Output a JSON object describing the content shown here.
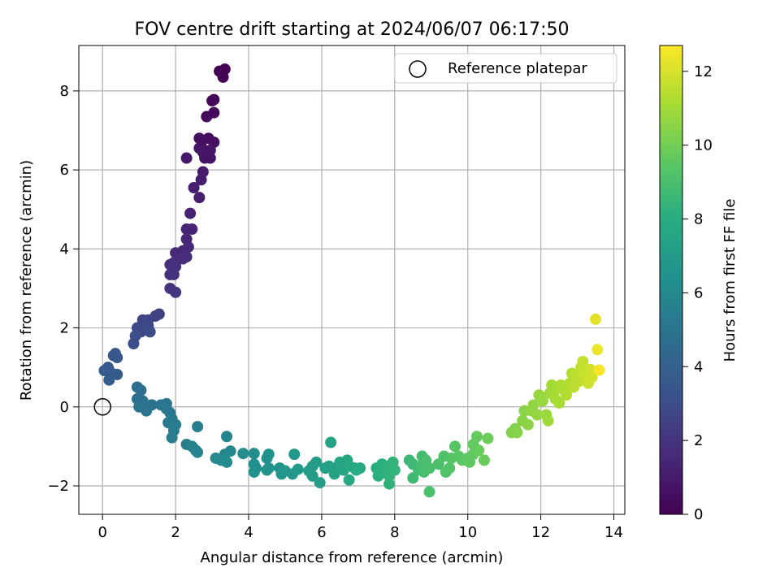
{
  "chart_data": {
    "type": "scatter",
    "title": "FOV centre drift starting at 2024/06/07 06:17:50",
    "xlabel": "Angular distance from reference (arcmin)",
    "ylabel": "Rotation from reference (arcmin)",
    "xlim": [
      -0.65,
      14.3
    ],
    "ylim": [
      -2.72,
      9.15
    ],
    "xticks": [
      0,
      2,
      4,
      6,
      8,
      10,
      12,
      14
    ],
    "yticks": [
      -2,
      0,
      2,
      4,
      6,
      8
    ],
    "grid": true,
    "legend": {
      "placement": "top-right",
      "entries": [
        "Reference platepar"
      ]
    },
    "colorbar": {
      "label": "Hours from first FF file",
      "colormap": "viridis",
      "range": [
        0,
        12.7
      ],
      "ticks": [
        0,
        2,
        4,
        6,
        8,
        10,
        12
      ]
    },
    "reference_point": {
      "x": 0,
      "y": 0
    },
    "points": [
      [
        3.2,
        8.5,
        0.0
      ],
      [
        3.35,
        8.55,
        0.05
      ],
      [
        3.3,
        8.35,
        0.1
      ],
      [
        3.05,
        7.78,
        0.2
      ],
      [
        3.0,
        7.75,
        0.25
      ],
      [
        3.05,
        7.45,
        0.3
      ],
      [
        2.85,
        7.35,
        0.35
      ],
      [
        2.9,
        6.8,
        0.45
      ],
      [
        3.05,
        6.7,
        0.5
      ],
      [
        2.65,
        6.8,
        0.55
      ],
      [
        2.7,
        6.6,
        0.6
      ],
      [
        2.75,
        6.45,
        0.65
      ],
      [
        2.8,
        6.3,
        0.7
      ],
      [
        2.95,
        6.3,
        0.75
      ],
      [
        2.95,
        6.5,
        0.8
      ],
      [
        2.65,
        6.55,
        0.85
      ],
      [
        2.3,
        6.3,
        0.9
      ],
      [
        2.75,
        5.95,
        1.0
      ],
      [
        2.7,
        5.75,
        1.05
      ],
      [
        2.5,
        5.55,
        1.1
      ],
      [
        2.65,
        5.3,
        1.15
      ],
      [
        2.4,
        4.9,
        1.3
      ],
      [
        2.45,
        4.5,
        1.35
      ],
      [
        2.3,
        4.5,
        1.4
      ],
      [
        2.3,
        4.25,
        1.45
      ],
      [
        2.35,
        4.05,
        1.5
      ],
      [
        2.2,
        3.95,
        1.55
      ],
      [
        2.0,
        3.9,
        1.6
      ],
      [
        2.2,
        3.75,
        1.65
      ],
      [
        2.3,
        3.8,
        1.7
      ],
      [
        1.95,
        3.65,
        1.75
      ],
      [
        1.85,
        3.6,
        1.8
      ],
      [
        2.0,
        3.55,
        1.85
      ],
      [
        1.85,
        3.35,
        1.9
      ],
      [
        1.95,
        3.35,
        1.95
      ],
      [
        1.85,
        3.0,
        2.0
      ],
      [
        2.0,
        2.9,
        2.1
      ],
      [
        1.55,
        2.35,
        2.5
      ],
      [
        1.45,
        2.3,
        2.55
      ],
      [
        1.25,
        2.2,
        2.6
      ],
      [
        1.1,
        2.2,
        2.7
      ],
      [
        1.25,
        2.05,
        2.75
      ],
      [
        1.15,
        2.0,
        2.8
      ],
      [
        0.95,
        2.0,
        2.85
      ],
      [
        1.05,
        1.9,
        2.9
      ],
      [
        1.3,
        1.9,
        2.95
      ],
      [
        0.9,
        1.8,
        3.0
      ],
      [
        0.85,
        1.6,
        3.05
      ],
      [
        0.35,
        1.35,
        3.4
      ],
      [
        0.3,
        1.3,
        3.45
      ],
      [
        0.4,
        1.25,
        3.5
      ],
      [
        0.15,
        1.0,
        3.55
      ],
      [
        0.2,
        0.9,
        3.6
      ],
      [
        0.05,
        0.92,
        3.7
      ],
      [
        0.4,
        0.82,
        3.75
      ],
      [
        0.18,
        0.68,
        3.8
      ],
      [
        0.95,
        0.5,
        4.6
      ],
      [
        1.05,
        0.42,
        4.65
      ],
      [
        0.95,
        0.2,
        4.7
      ],
      [
        1.1,
        0.15,
        4.75
      ],
      [
        1.35,
        0.05,
        4.8
      ],
      [
        1.25,
        0.02,
        4.85
      ],
      [
        1.6,
        0.05,
        4.9
      ],
      [
        1.0,
        0.0,
        4.95
      ],
      [
        1.2,
        -0.1,
        5.0
      ],
      [
        1.75,
        0.08,
        5.05
      ],
      [
        1.75,
        -0.05,
        5.1
      ],
      [
        1.85,
        -0.15,
        5.15
      ],
      [
        1.9,
        -0.3,
        5.2
      ],
      [
        1.8,
        -0.4,
        5.25
      ],
      [
        2.0,
        -0.45,
        5.3
      ],
      [
        1.95,
        -0.6,
        5.35
      ],
      [
        1.9,
        -0.78,
        5.4
      ],
      [
        2.6,
        -0.5,
        5.45
      ],
      [
        2.3,
        -0.95,
        5.5
      ],
      [
        2.45,
        -1.0,
        5.6
      ],
      [
        2.55,
        -1.1,
        5.65
      ],
      [
        2.6,
        -1.15,
        5.7
      ],
      [
        3.4,
        -0.75,
        5.8
      ],
      [
        3.5,
        -1.12,
        5.85
      ],
      [
        3.35,
        -1.2,
        5.9
      ],
      [
        3.3,
        -1.3,
        5.95
      ],
      [
        3.1,
        -1.3,
        6.0
      ],
      [
        3.25,
        -1.35,
        6.05
      ],
      [
        3.4,
        -1.4,
        6.1
      ],
      [
        3.85,
        -1.18,
        6.2
      ],
      [
        4.15,
        -1.18,
        6.25
      ],
      [
        4.15,
        -1.45,
        6.3
      ],
      [
        4.2,
        -1.55,
        6.35
      ],
      [
        4.15,
        -1.65,
        6.4
      ],
      [
        4.55,
        -1.2,
        6.45
      ],
      [
        4.5,
        -1.3,
        6.5
      ],
      [
        4.55,
        -1.55,
        6.55
      ],
      [
        4.5,
        -1.6,
        6.6
      ],
      [
        4.85,
        -1.55,
        6.65
      ],
      [
        4.9,
        -1.7,
        6.7
      ],
      [
        5.0,
        -1.62,
        6.75
      ],
      [
        5.2,
        -1.7,
        6.8
      ],
      [
        5.25,
        -1.2,
        6.85
      ],
      [
        5.35,
        -1.58,
        6.9
      ],
      [
        5.75,
        -1.5,
        6.95
      ],
      [
        5.65,
        -1.62,
        7.0
      ],
      [
        5.75,
        -1.75,
        7.05
      ],
      [
        5.85,
        -1.4,
        7.1
      ],
      [
        5.95,
        -1.92,
        7.2
      ],
      [
        6.1,
        -1.55,
        7.25
      ],
      [
        6.2,
        -1.5,
        7.3
      ],
      [
        6.25,
        -0.9,
        7.35
      ],
      [
        6.3,
        -1.55,
        7.4
      ],
      [
        6.35,
        -1.7,
        7.45
      ],
      [
        6.5,
        -1.4,
        7.5
      ],
      [
        6.55,
        -1.5,
        7.55
      ],
      [
        6.6,
        -1.6,
        7.6
      ],
      [
        6.7,
        -1.35,
        7.65
      ],
      [
        6.75,
        -1.5,
        7.7
      ],
      [
        6.75,
        -1.85,
        7.75
      ],
      [
        6.9,
        -1.55,
        7.8
      ],
      [
        7.05,
        -1.55,
        7.85
      ],
      [
        6.95,
        -1.6,
        7.9
      ],
      [
        7.5,
        -1.55,
        8.0
      ],
      [
        7.55,
        -1.75,
        8.05
      ],
      [
        7.65,
        -1.45,
        8.1
      ],
      [
        7.7,
        -1.62,
        8.15
      ],
      [
        7.8,
        -1.5,
        8.2
      ],
      [
        7.85,
        -1.95,
        8.25
      ],
      [
        7.85,
        -1.75,
        8.3
      ],
      [
        7.95,
        -1.4,
        8.35
      ],
      [
        8.0,
        -1.6,
        8.4
      ],
      [
        8.4,
        -1.35,
        8.6
      ],
      [
        8.5,
        -1.45,
        8.65
      ],
      [
        8.5,
        -1.8,
        8.7
      ],
      [
        8.65,
        -1.6,
        8.75
      ],
      [
        8.75,
        -1.25,
        8.8
      ],
      [
        8.7,
        -1.5,
        8.85
      ],
      [
        8.8,
        -1.65,
        8.9
      ],
      [
        8.85,
        -1.35,
        8.95
      ],
      [
        8.95,
        -1.55,
        9.0
      ],
      [
        8.95,
        -2.15,
        9.05
      ],
      [
        9.2,
        -1.45,
        9.1
      ],
      [
        9.35,
        -1.25,
        9.15
      ],
      [
        9.4,
        -1.65,
        9.2
      ],
      [
        9.5,
        -1.55,
        9.25
      ],
      [
        9.55,
        -1.3,
        9.3
      ],
      [
        9.65,
        -1.0,
        9.35
      ],
      [
        9.75,
        -1.25,
        9.4
      ],
      [
        9.85,
        -1.35,
        9.45
      ],
      [
        10.0,
        -1.3,
        9.5
      ],
      [
        10.05,
        -1.4,
        9.55
      ],
      [
        10.15,
        -1.2,
        9.6
      ],
      [
        10.15,
        -0.95,
        9.65
      ],
      [
        10.25,
        -0.75,
        9.7
      ],
      [
        10.3,
        -1.1,
        9.75
      ],
      [
        10.45,
        -1.35,
        9.8
      ],
      [
        10.55,
        -0.8,
        9.85
      ],
      [
        11.2,
        -0.65,
        10.3
      ],
      [
        11.3,
        -0.55,
        10.35
      ],
      [
        11.35,
        -0.65,
        10.4
      ],
      [
        11.5,
        -0.35,
        10.45
      ],
      [
        11.55,
        -0.1,
        10.5
      ],
      [
        11.65,
        -0.45,
        10.55
      ],
      [
        11.75,
        -0.1,
        10.6
      ],
      [
        11.8,
        0.05,
        10.65
      ],
      [
        11.9,
        -0.2,
        10.7
      ],
      [
        11.95,
        0.3,
        10.75
      ],
      [
        12.05,
        0.15,
        10.8
      ],
      [
        12.15,
        -0.2,
        10.85
      ],
      [
        12.2,
        -0.35,
        10.9
      ],
      [
        12.25,
        0.35,
        10.95
      ],
      [
        12.3,
        0.55,
        11.0
      ],
      [
        12.35,
        0.4,
        11.05
      ],
      [
        12.4,
        0.2,
        11.1
      ],
      [
        12.5,
        0.1,
        11.15
      ],
      [
        12.55,
        0.55,
        11.2
      ],
      [
        12.6,
        0.45,
        11.25
      ],
      [
        12.7,
        0.3,
        11.3
      ],
      [
        12.8,
        0.6,
        11.35
      ],
      [
        12.85,
        0.85,
        11.4
      ],
      [
        12.9,
        0.5,
        11.45
      ],
      [
        13.0,
        0.8,
        11.5
      ],
      [
        13.05,
        0.65,
        11.55
      ],
      [
        13.1,
        1.0,
        11.6
      ],
      [
        13.15,
        1.15,
        11.65
      ],
      [
        13.2,
        0.85,
        11.7
      ],
      [
        13.25,
        0.7,
        11.75
      ],
      [
        13.3,
        0.6,
        11.8
      ],
      [
        13.35,
        0.95,
        11.85
      ],
      [
        13.4,
        0.75,
        11.9
      ],
      [
        13.5,
        2.22,
        12.2
      ],
      [
        13.55,
        1.45,
        12.4
      ],
      [
        13.6,
        0.93,
        12.6
      ]
    ]
  }
}
